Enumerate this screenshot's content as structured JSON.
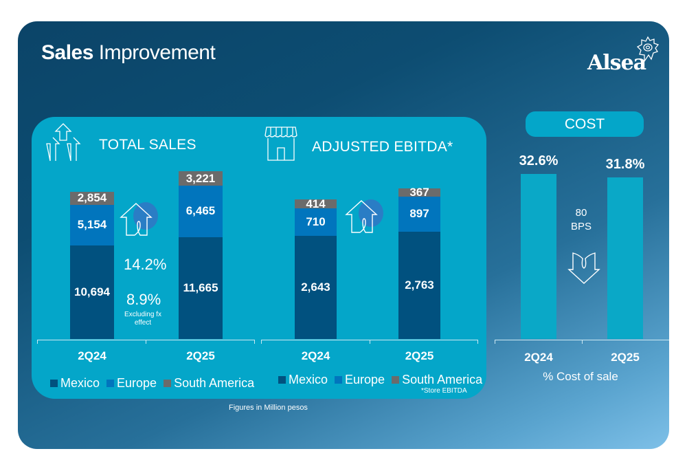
{
  "header": {
    "title_bold": "Sales",
    "title_light": "Improvement",
    "logo_text": "Alsea"
  },
  "colors": {
    "mexico": "#01517f",
    "europe": "#0175bd",
    "south_america": "#6b6b6b",
    "panel": "#04a6c9",
    "cost_bar": "#0aa8c7"
  },
  "total_sales": {
    "title": "TOTAL SALES",
    "growth": "14.2%",
    "growth_ex_fx": "8.9%",
    "growth_ex_fx_note_1": "Excluding fx",
    "growth_ex_fx_note_2": "effect"
  },
  "ebitda": {
    "title": "ADJUSTED EBITDA*",
    "footnote": "*Store EBITDA"
  },
  "legend": {
    "mexico": "Mexico",
    "europe": "Europe",
    "south_america": "South America"
  },
  "cost": {
    "title": "COST",
    "change_value": "80",
    "change_unit": "BPS",
    "caption": "% Cost of sale"
  },
  "footer": {
    "figures_note": "Figures in Million pesos"
  },
  "chart_data": [
    {
      "type": "bar",
      "stacked": true,
      "title": "TOTAL SALES",
      "categories": [
        "2Q24",
        "2Q25"
      ],
      "series": [
        {
          "name": "Mexico",
          "values": [
            10694,
            11665
          ],
          "labels": [
            "10,694",
            "11,665"
          ]
        },
        {
          "name": "Europe",
          "values": [
            5154,
            6465
          ],
          "labels": [
            "5,154",
            "6,465"
          ]
        },
        {
          "name": "South America",
          "values": [
            2854,
            3221
          ],
          "labels": [
            "2,854",
            "3,221"
          ]
        }
      ],
      "annotations": [
        "14.2%",
        "8.9% Excluding fx effect"
      ],
      "legend": "bottom",
      "unit": "Million pesos",
      "ylim": [
        0,
        22000
      ]
    },
    {
      "type": "bar",
      "stacked": true,
      "title": "ADJUSTED EBITDA*",
      "categories": [
        "2Q24",
        "2Q25"
      ],
      "series": [
        {
          "name": "Mexico",
          "values": [
            2643,
            2763
          ],
          "labels": [
            "2,643",
            "2,763"
          ]
        },
        {
          "name": "Europe",
          "values": [
            710,
            897
          ],
          "labels": [
            "710",
            "897"
          ]
        },
        {
          "name": "South America",
          "values": [
            414,
            367
          ],
          "labels": [
            "414",
            "367"
          ]
        }
      ],
      "legend": "bottom",
      "footnote": "*Store EBITDA",
      "unit": "Million pesos",
      "ylim": [
        0,
        4500
      ]
    },
    {
      "type": "bar",
      "title": "COST",
      "categories": [
        "2Q24",
        "2Q25"
      ],
      "values": [
        32.6,
        31.8
      ],
      "labels": [
        "32.6%",
        "31.8%"
      ],
      "xlabel": "% Cost of sale",
      "annotations": [
        "80 BPS"
      ],
      "ylim": [
        0,
        34
      ]
    }
  ]
}
